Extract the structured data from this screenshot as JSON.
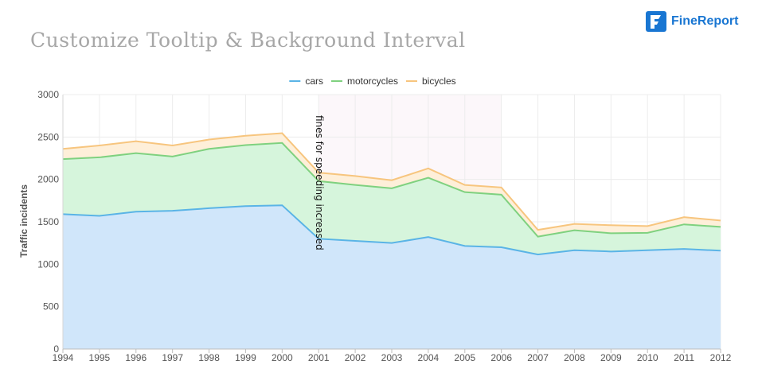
{
  "page": {
    "title": "Customize Tooltip & Background Interval",
    "brand": "FineReport",
    "brand_color": "#1976d2"
  },
  "chart_data": {
    "type": "area",
    "stacked": true,
    "x": [
      "1994",
      "1995",
      "1996",
      "1997",
      "1998",
      "1999",
      "2000",
      "2001",
      "2002",
      "2003",
      "2004",
      "2005",
      "2006",
      "2007",
      "2008",
      "2009",
      "2010",
      "2011",
      "2012"
    ],
    "series": [
      {
        "name": "cars",
        "color": "#5ab4e6",
        "fill": "#d0e6fa",
        "values": [
          1590,
          1570,
          1620,
          1630,
          1660,
          1685,
          1695,
          1300,
          1275,
          1250,
          1320,
          1215,
          1200,
          1115,
          1165,
          1150,
          1165,
          1180,
          1160
        ]
      },
      {
        "name": "motorcycles",
        "color": "#7fd17f",
        "fill": "#d6f5dc",
        "values": [
          650,
          690,
          690,
          640,
          700,
          720,
          735,
          680,
          660,
          645,
          700,
          635,
          620,
          210,
          235,
          215,
          205,
          290,
          280
        ]
      },
      {
        "name": "bicycles",
        "color": "#f7c57e",
        "fill": "#feefd9",
        "values": [
          120,
          140,
          140,
          130,
          110,
          110,
          115,
          100,
          105,
          95,
          110,
          85,
          85,
          80,
          75,
          95,
          80,
          85,
          75
        ]
      }
    ],
    "ylabel": "Traffic incidents",
    "ylim": [
      0,
      3000
    ],
    "yticks": [
      0,
      500,
      1000,
      1500,
      2000,
      2500,
      3000
    ],
    "grid": true,
    "legend_position": "top-center",
    "plot_band": {
      "from": "2001",
      "to": "2006",
      "color": "#fcf7fa"
    },
    "annotation": {
      "text": "fines for speeding increased",
      "at": "2001"
    }
  }
}
